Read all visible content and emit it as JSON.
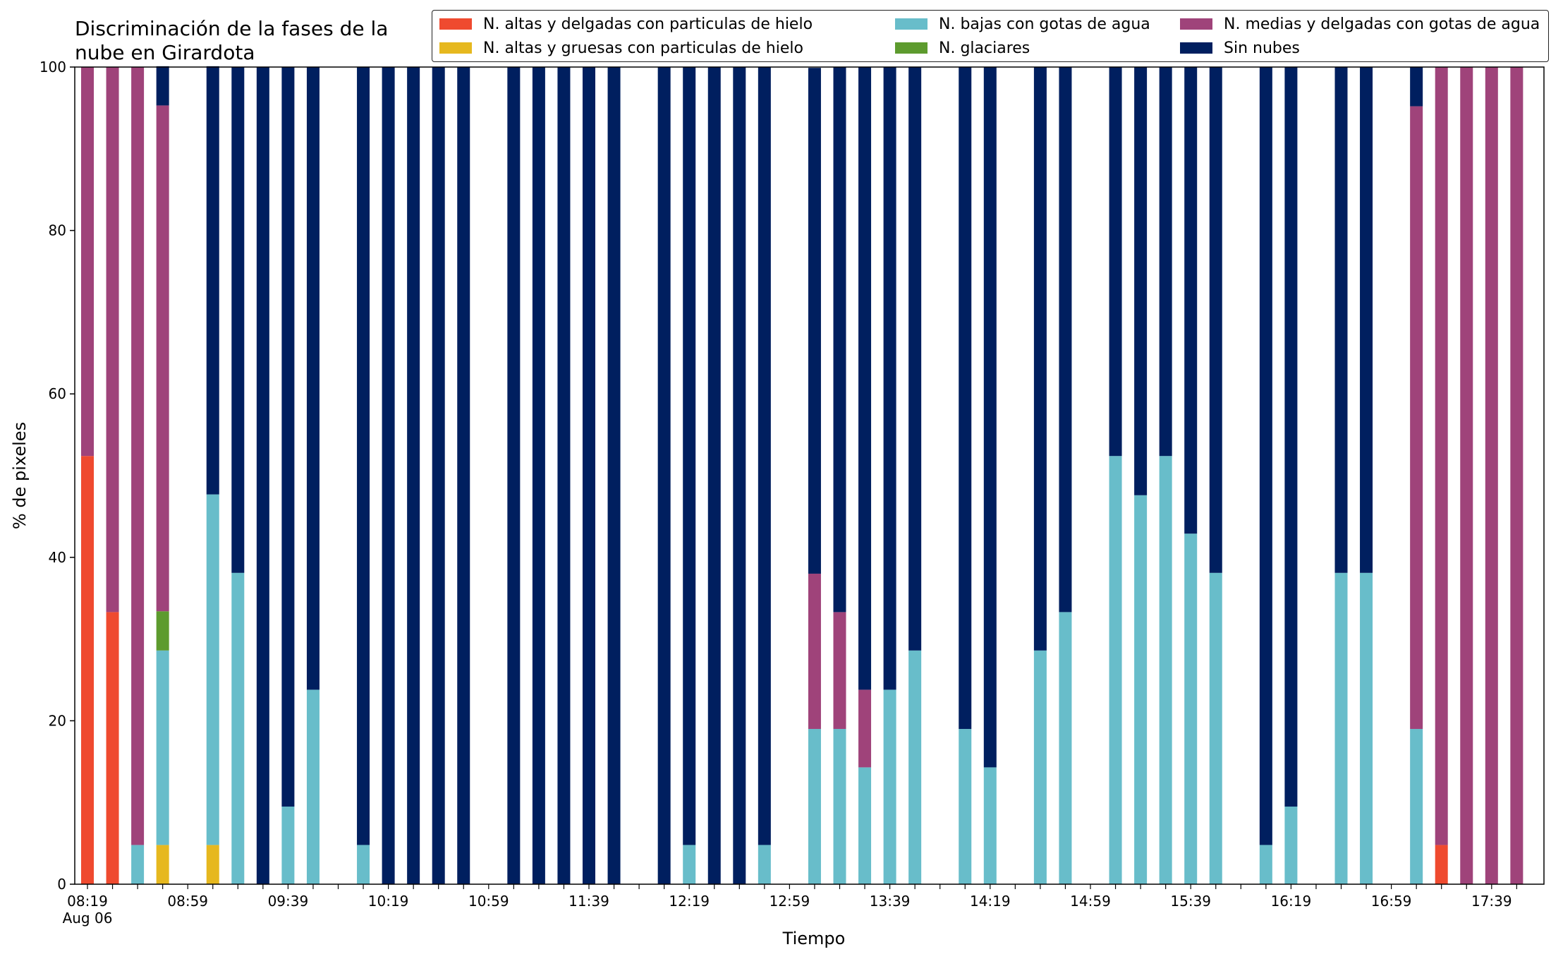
{
  "chart_data": {
    "type": "bar",
    "stacked": true,
    "title": [
      "Discriminación de la fases de la",
      "nube en Girardota"
    ],
    "xlabel": "Tiempo",
    "ylabel": "% de pixeles",
    "ylim": [
      0,
      100
    ],
    "yticks": [
      0,
      20,
      40,
      60,
      80,
      100
    ],
    "xtick_labels": [
      {
        "slot": 0,
        "label": "08:19",
        "sub": "Aug 06"
      },
      {
        "slot": 4,
        "label": "08:59"
      },
      {
        "slot": 8,
        "label": "09:39"
      },
      {
        "slot": 12,
        "label": "10:19"
      },
      {
        "slot": 16,
        "label": "10:59"
      },
      {
        "slot": 20,
        "label": "11:39"
      },
      {
        "slot": 24,
        "label": "12:19"
      },
      {
        "slot": 28,
        "label": "12:59"
      },
      {
        "slot": 32,
        "label": "13:39"
      },
      {
        "slot": 36,
        "label": "14:19"
      },
      {
        "slot": 40,
        "label": "14:59"
      },
      {
        "slot": 44,
        "label": "15:39"
      },
      {
        "slot": 48,
        "label": "16:19"
      },
      {
        "slot": 52,
        "label": "16:59"
      },
      {
        "slot": 56,
        "label": "17:39"
      }
    ],
    "slots": 58,
    "legend_placement": "top-right",
    "series": [
      {
        "name": "N. altas y delgadas con particulas de hielo",
        "color": "#ef4a2f"
      },
      {
        "name": "N. altas y gruesas con particulas de hielo",
        "color": "#e6b81f"
      },
      {
        "name": "N. bajas con gotas de agua",
        "color": "#68bdca"
      },
      {
        "name": "N. glaciares",
        "color": "#5d9b2e"
      },
      {
        "name": "N. medias y delgadas con gotas de agua",
        "color": "#9f437a"
      },
      {
        "name": "Sin nubes",
        "color": "#001f5f"
      }
    ],
    "bars": [
      {
        "slot": 0,
        "values": [
          52.4,
          0,
          0,
          0,
          47.6,
          0
        ]
      },
      {
        "slot": 1,
        "values": [
          33.3,
          0,
          0,
          0,
          66.7,
          0
        ]
      },
      {
        "slot": 2,
        "values": [
          0,
          0,
          4.8,
          0,
          95.2,
          0
        ]
      },
      {
        "slot": 3,
        "values": [
          0,
          4.8,
          23.8,
          4.8,
          61.9,
          4.8
        ]
      },
      {
        "slot": 5,
        "values": [
          0,
          4.8,
          42.9,
          0,
          0,
          52.4
        ]
      },
      {
        "slot": 6,
        "values": [
          0,
          0,
          38.1,
          0,
          0,
          61.9
        ]
      },
      {
        "slot": 7,
        "values": [
          0,
          0,
          0,
          0,
          0,
          100
        ]
      },
      {
        "slot": 8,
        "values": [
          0,
          0,
          9.5,
          0,
          0,
          90.5
        ]
      },
      {
        "slot": 9,
        "values": [
          0,
          0,
          23.8,
          0,
          0,
          76.2
        ]
      },
      {
        "slot": 11,
        "values": [
          0,
          0,
          4.8,
          0,
          0,
          95.2
        ]
      },
      {
        "slot": 12,
        "values": [
          0,
          0,
          0,
          0,
          0,
          100
        ]
      },
      {
        "slot": 13,
        "values": [
          0,
          0,
          0,
          0,
          0,
          100
        ]
      },
      {
        "slot": 14,
        "values": [
          0,
          0,
          0,
          0,
          0,
          100
        ]
      },
      {
        "slot": 15,
        "values": [
          0,
          0,
          0,
          0,
          0,
          100
        ]
      },
      {
        "slot": 17,
        "values": [
          0,
          0,
          0,
          0,
          0,
          100
        ]
      },
      {
        "slot": 18,
        "values": [
          0,
          0,
          0,
          0,
          0,
          100
        ]
      },
      {
        "slot": 19,
        "values": [
          0,
          0,
          0,
          0,
          0,
          100
        ]
      },
      {
        "slot": 20,
        "values": [
          0,
          0,
          0,
          0,
          0,
          100
        ]
      },
      {
        "slot": 21,
        "values": [
          0,
          0,
          0,
          0,
          0,
          100
        ]
      },
      {
        "slot": 23,
        "values": [
          0,
          0,
          0,
          0,
          0,
          100
        ]
      },
      {
        "slot": 24,
        "values": [
          0,
          0,
          4.8,
          0,
          0,
          95.2
        ]
      },
      {
        "slot": 25,
        "values": [
          0,
          0,
          0,
          0,
          0,
          100
        ]
      },
      {
        "slot": 26,
        "values": [
          0,
          0,
          0,
          0,
          0,
          100
        ]
      },
      {
        "slot": 27,
        "values": [
          0,
          0,
          4.8,
          0,
          0,
          95.2
        ]
      },
      {
        "slot": 29,
        "values": [
          0,
          0,
          19.0,
          0,
          19.0,
          61.9
        ]
      },
      {
        "slot": 30,
        "values": [
          0,
          0,
          19.0,
          0,
          14.3,
          66.7
        ]
      },
      {
        "slot": 31,
        "values": [
          0,
          0,
          14.3,
          0,
          9.5,
          76.2
        ]
      },
      {
        "slot": 32,
        "values": [
          0,
          0,
          23.8,
          0,
          0,
          76.2
        ]
      },
      {
        "slot": 33,
        "values": [
          0,
          0,
          28.6,
          0,
          0,
          71.4
        ]
      },
      {
        "slot": 35,
        "values": [
          0,
          0,
          19.0,
          0,
          0,
          81.0
        ]
      },
      {
        "slot": 36,
        "values": [
          0,
          0,
          14.3,
          0,
          0,
          85.7
        ]
      },
      {
        "slot": 38,
        "values": [
          0,
          0,
          28.6,
          0,
          0,
          71.4
        ]
      },
      {
        "slot": 39,
        "values": [
          0,
          0,
          33.3,
          0,
          0,
          66.7
        ]
      },
      {
        "slot": 41,
        "values": [
          0,
          0,
          52.4,
          0,
          0,
          47.6
        ]
      },
      {
        "slot": 42,
        "values": [
          0,
          0,
          47.6,
          0,
          0,
          52.4
        ]
      },
      {
        "slot": 43,
        "values": [
          0,
          0,
          52.4,
          0,
          0,
          47.6
        ]
      },
      {
        "slot": 44,
        "values": [
          0,
          0,
          42.9,
          0,
          0,
          57.1
        ]
      },
      {
        "slot": 45,
        "values": [
          0,
          0,
          38.1,
          0,
          0,
          61.9
        ]
      },
      {
        "slot": 47,
        "values": [
          0,
          0,
          4.8,
          0,
          0,
          95.2
        ]
      },
      {
        "slot": 48,
        "values": [
          0,
          0,
          9.5,
          0,
          0,
          90.5
        ]
      },
      {
        "slot": 50,
        "values": [
          0,
          0,
          38.1,
          0,
          0,
          61.9
        ]
      },
      {
        "slot": 51,
        "values": [
          0,
          0,
          38.1,
          0,
          0,
          61.9
        ]
      },
      {
        "slot": 53,
        "values": [
          0,
          0,
          19.0,
          0,
          76.2,
          4.8
        ]
      },
      {
        "slot": 54,
        "values": [
          4.8,
          0,
          0,
          0,
          95.2,
          0
        ]
      },
      {
        "slot": 55,
        "values": [
          0,
          0,
          0,
          0,
          100,
          0
        ]
      },
      {
        "slot": 56,
        "values": [
          0,
          0,
          0,
          0,
          100,
          0
        ]
      },
      {
        "slot": 57,
        "values": [
          0,
          0,
          0,
          0,
          100,
          0
        ]
      }
    ]
  }
}
